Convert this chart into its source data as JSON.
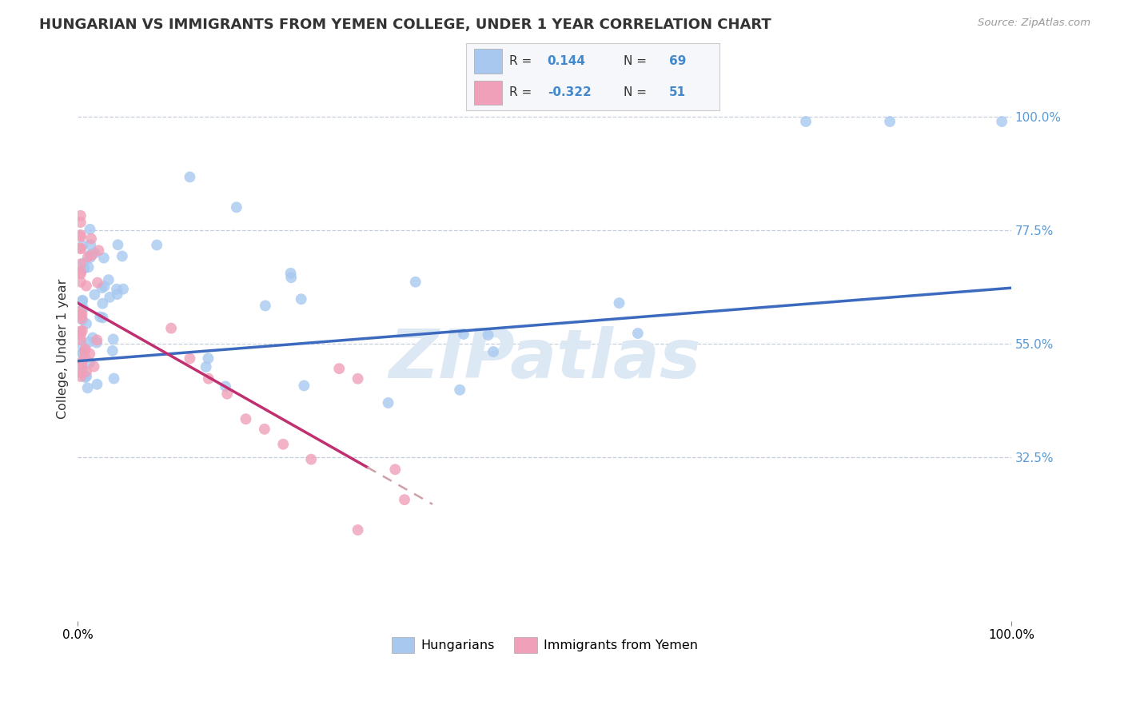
{
  "title": "HUNGARIAN VS IMMIGRANTS FROM YEMEN COLLEGE, UNDER 1 YEAR CORRELATION CHART",
  "source": "Source: ZipAtlas.com",
  "ylabel": "College, Under 1 year",
  "xlim": [
    0,
    1
  ],
  "ylim": [
    0,
    1.08
  ],
  "x_tick_labels": [
    "0.0%",
    "100.0%"
  ],
  "y_tick_labels_right": [
    "100.0%",
    "77.5%",
    "55.0%",
    "32.5%"
  ],
  "y_tick_positions_right": [
    1.0,
    0.775,
    0.55,
    0.325
  ],
  "color_hungarian": "#a8c8f0",
  "color_yemen": "#f0a0b8",
  "color_line_hungarian": "#3c6abf",
  "color_line_yemen": "#c03070",
  "color_line_dashed": "#d0a0a8",
  "background_color": "#ffffff",
  "grid_color": "#c0c8d8",
  "watermark": "ZIPatlas",
  "watermark_color": "#dce8f4"
}
